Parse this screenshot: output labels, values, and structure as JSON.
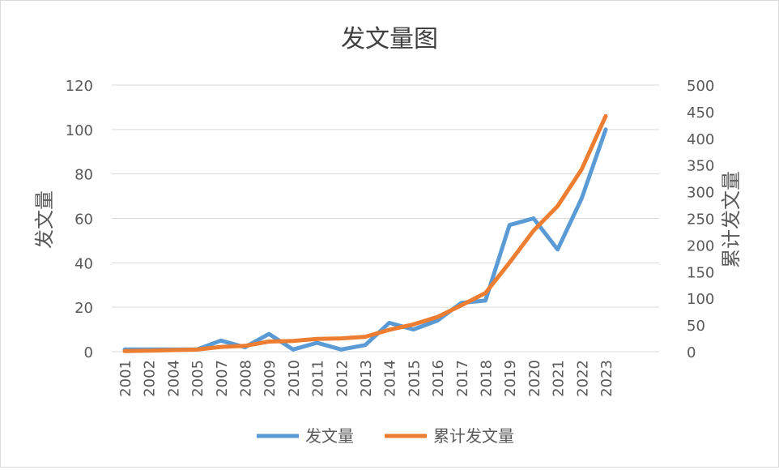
{
  "chart_data": {
    "type": "line",
    "title": "发文量图",
    "categories": [
      "2001",
      "2002",
      "2004",
      "2005",
      "2007",
      "2008",
      "2009",
      "2010",
      "2011",
      "2012",
      "2013",
      "2014",
      "2015",
      "2016",
      "2017",
      "2018",
      "2019",
      "2020",
      "2021",
      "2022",
      "2023"
    ],
    "series": [
      {
        "name": "发文量",
        "axis": "left",
        "color": "#5b9bd5",
        "values": [
          1,
          1,
          1,
          1,
          5,
          2,
          8,
          1,
          4,
          1,
          3,
          13,
          10,
          14,
          22,
          23,
          57,
          60,
          46,
          69,
          100
        ]
      },
      {
        "name": "累计发文量",
        "axis": "right",
        "color": "#ed7d31",
        "values": [
          1,
          2,
          3,
          4,
          9,
          11,
          19,
          20,
          24,
          25,
          28,
          41,
          51,
          65,
          87,
          110,
          167,
          227,
          273,
          342,
          442
        ]
      }
    ],
    "ylabel_left": "发文量",
    "ylabel_right": "累计发文量",
    "ylim_left": [
      0,
      120
    ],
    "yticks_left": [
      "0",
      "20",
      "40",
      "60",
      "80",
      "100",
      "120"
    ],
    "ylim_right": [
      0,
      500
    ],
    "yticks_right": [
      "0",
      "50",
      "100",
      "150",
      "200",
      "250",
      "300",
      "350",
      "400",
      "450",
      "500"
    ],
    "grid": true,
    "legend_position": "bottom"
  }
}
